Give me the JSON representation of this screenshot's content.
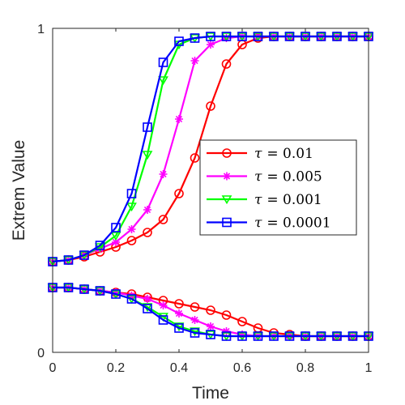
{
  "chart_data": {
    "type": "line",
    "title": "",
    "xlabel": "Time",
    "ylabel": "Extrem Value",
    "xlim": [
      0,
      1
    ],
    "ylim": [
      0,
      1
    ],
    "x_ticks": [
      "0",
      "0.2",
      "0.4",
      "0.6",
      "0.8",
      "1"
    ],
    "y_ticks": [
      "0",
      "1"
    ],
    "grid": false,
    "legend_position": "right",
    "x": [
      0,
      0.05,
      0.1,
      0.15,
      0.2,
      0.25,
      0.3,
      0.35,
      0.4,
      0.45,
      0.5,
      0.55,
      0.6,
      0.65,
      0.7,
      0.75,
      0.8,
      0.85,
      0.9,
      0.95,
      1.0
    ],
    "series": [
      {
        "name": "τ = 0.01",
        "legend_symbol": "τ",
        "legend_value": "= 0.01",
        "color": "#ff0000",
        "marker": "circle",
        "upper": [
          0.28,
          0.285,
          0.295,
          0.31,
          0.325,
          0.345,
          0.37,
          0.41,
          0.49,
          0.6,
          0.76,
          0.89,
          0.95,
          0.97,
          0.975,
          0.975,
          0.975,
          0.975,
          0.975,
          0.975,
          0.975
        ],
        "lower": [
          0.2,
          0.2,
          0.195,
          0.19,
          0.185,
          0.18,
          0.17,
          0.16,
          0.15,
          0.14,
          0.13,
          0.115,
          0.095,
          0.075,
          0.06,
          0.055,
          0.05,
          0.05,
          0.05,
          0.05,
          0.05
        ]
      },
      {
        "name": "τ = 0.005",
        "legend_symbol": "τ",
        "legend_value": "= 0.005",
        "color": "#ff00ff",
        "marker": "star",
        "upper": [
          0.28,
          0.285,
          0.3,
          0.32,
          0.34,
          0.38,
          0.44,
          0.55,
          0.72,
          0.9,
          0.95,
          0.97,
          0.975,
          0.975,
          0.975,
          0.975,
          0.975,
          0.975,
          0.975,
          0.975,
          0.975
        ],
        "lower": [
          0.2,
          0.2,
          0.195,
          0.19,
          0.185,
          0.175,
          0.165,
          0.145,
          0.12,
          0.1,
          0.08,
          0.065,
          0.055,
          0.05,
          0.05,
          0.05,
          0.05,
          0.05,
          0.05,
          0.05,
          0.05
        ]
      },
      {
        "name": "τ = 0.001",
        "legend_symbol": "τ",
        "legend_value": "= 0.001",
        "color": "#00ff00",
        "marker": "triangle-down",
        "upper": [
          0.28,
          0.285,
          0.3,
          0.325,
          0.36,
          0.45,
          0.61,
          0.84,
          0.95,
          0.97,
          0.975,
          0.975,
          0.975,
          0.975,
          0.975,
          0.975,
          0.975,
          0.975,
          0.975,
          0.975,
          0.975
        ],
        "lower": [
          0.2,
          0.2,
          0.195,
          0.19,
          0.18,
          0.165,
          0.14,
          0.11,
          0.08,
          0.065,
          0.055,
          0.05,
          0.05,
          0.05,
          0.05,
          0.05,
          0.05,
          0.05,
          0.05,
          0.05,
          0.05
        ]
      },
      {
        "name": "τ = 0.0001",
        "legend_symbol": "τ",
        "legend_value": "= 0.0001",
        "color": "#0000ff",
        "marker": "square",
        "upper": [
          0.28,
          0.285,
          0.3,
          0.33,
          0.385,
          0.49,
          0.695,
          0.895,
          0.96,
          0.97,
          0.975,
          0.975,
          0.975,
          0.975,
          0.975,
          0.975,
          0.975,
          0.975,
          0.975,
          0.975,
          0.975
        ],
        "lower": [
          0.2,
          0.2,
          0.195,
          0.19,
          0.18,
          0.165,
          0.135,
          0.1,
          0.075,
          0.06,
          0.055,
          0.05,
          0.05,
          0.05,
          0.05,
          0.05,
          0.05,
          0.05,
          0.05,
          0.05,
          0.05
        ]
      }
    ]
  }
}
